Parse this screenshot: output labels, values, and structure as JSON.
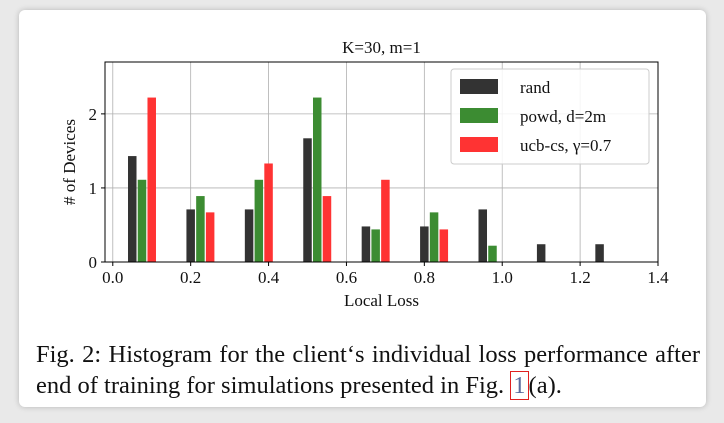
{
  "chart_data": {
    "type": "bar",
    "title": "K=30, m=1",
    "xlabel": "Local Loss",
    "ylabel": "# of Devices",
    "xlim": [
      -0.02,
      1.4
    ],
    "ylim": [
      0,
      2.7
    ],
    "xticks": [
      "0.0",
      "0.2",
      "0.4",
      "0.6",
      "0.8",
      "1.0",
      "1.2",
      "1.4"
    ],
    "yticks": [
      "0",
      "1",
      "2"
    ],
    "grid": true,
    "legend_position": "top-right",
    "series": [
      {
        "name": "rand",
        "color": "#333333",
        "points": [
          {
            "x": 0.05,
            "y": 1.43
          },
          {
            "x": 0.2,
            "y": 0.71
          },
          {
            "x": 0.35,
            "y": 0.71
          },
          {
            "x": 0.5,
            "y": 1.67
          },
          {
            "x": 0.65,
            "y": 0.48
          },
          {
            "x": 0.8,
            "y": 0.48
          },
          {
            "x": 0.95,
            "y": 0.71
          },
          {
            "x": 1.1,
            "y": 0.24
          },
          {
            "x": 1.25,
            "y": 0.24
          }
        ]
      },
      {
        "name": "powd, d=2m",
        "color": "#3c8c32",
        "points": [
          {
            "x": 0.075,
            "y": 1.11
          },
          {
            "x": 0.225,
            "y": 0.89
          },
          {
            "x": 0.375,
            "y": 1.11
          },
          {
            "x": 0.525,
            "y": 2.22
          },
          {
            "x": 0.675,
            "y": 0.44
          },
          {
            "x": 0.825,
            "y": 0.67
          },
          {
            "x": 0.975,
            "y": 0.22
          }
        ]
      },
      {
        "name": "ucb-cs, γ=0.7",
        "color": "#ff3333",
        "points": [
          {
            "x": 0.1,
            "y": 2.22
          },
          {
            "x": 0.25,
            "y": 0.67
          },
          {
            "x": 0.4,
            "y": 1.33
          },
          {
            "x": 0.55,
            "y": 0.89
          },
          {
            "x": 0.7,
            "y": 1.11
          },
          {
            "x": 0.85,
            "y": 0.44
          }
        ]
      }
    ]
  },
  "caption": {
    "text": "Fig. 2: Histogram for the client‘s individual loss performance after end of training for simulations presented in Fig.",
    "ref": "1",
    "suffix": "(a)."
  }
}
